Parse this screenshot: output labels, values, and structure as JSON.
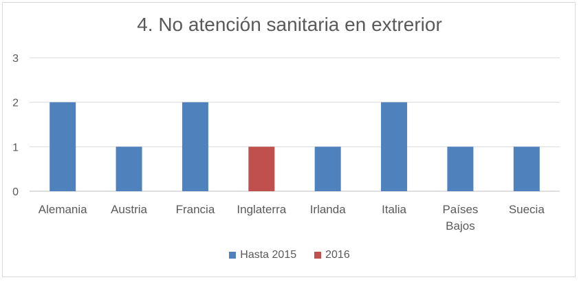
{
  "chart_data": {
    "type": "bar",
    "title": "4. No atención sanitaria en extrerior",
    "categories": [
      "Alemania",
      "Austria",
      "Francia",
      "Inglaterra",
      "Irlanda",
      "Italia",
      "Países Bajos",
      "Suecia"
    ],
    "series": [
      {
        "name": "Hasta 2015",
        "color": "#4f81bd",
        "values": [
          2,
          1,
          2,
          null,
          1,
          2,
          1,
          1
        ]
      },
      {
        "name": "2016",
        "color": "#c0504d",
        "values": [
          null,
          null,
          null,
          1,
          null,
          null,
          null,
          null
        ]
      }
    ],
    "ylim": [
      0,
      3
    ],
    "yticks": [
      0,
      1,
      2,
      3
    ],
    "grid": true,
    "legend": "bottom"
  }
}
